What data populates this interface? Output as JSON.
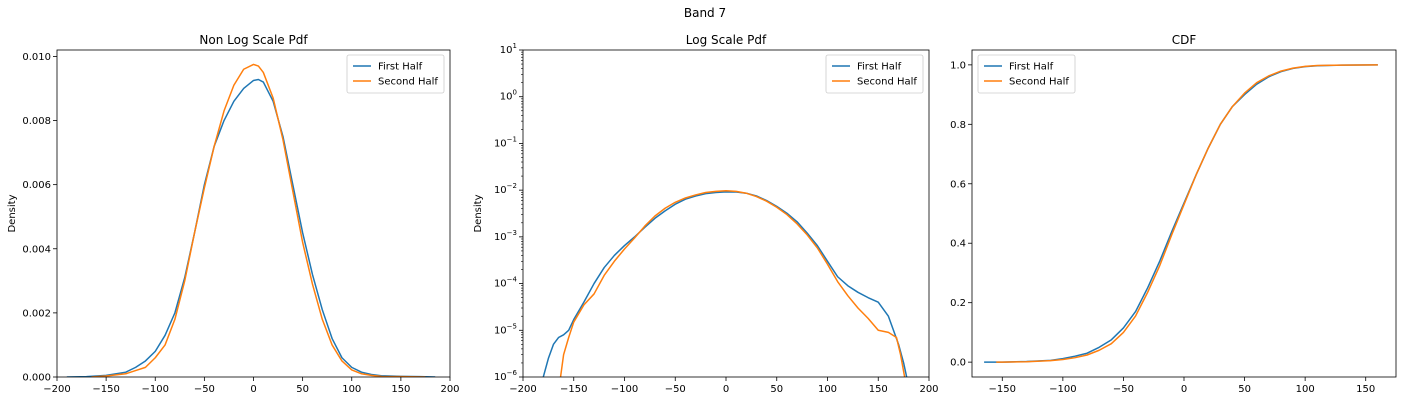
{
  "figure": {
    "suptitle": "Band 7"
  },
  "chart_data": [
    {
      "type": "line",
      "title": "Non Log Scale Pdf",
      "xlabel": "",
      "ylabel": "Density",
      "xlim": [
        -200,
        200
      ],
      "ylim": [
        0,
        0.0102
      ],
      "yscale": "linear",
      "xticks": [
        -200,
        -150,
        -100,
        -50,
        0,
        50,
        100,
        150,
        200
      ],
      "xtick_labels": [
        "−200",
        "−150",
        "−100",
        "−50",
        "0",
        "50",
        "100",
        "150",
        "200"
      ],
      "yticks": [
        0,
        0.002,
        0.004,
        0.006,
        0.008,
        0.01
      ],
      "ytick_labels": [
        "0.000",
        "0.002",
        "0.004",
        "0.006",
        "0.008",
        "0.010"
      ],
      "legend": {
        "position": "upper-right",
        "entries": [
          "First Half",
          "Second Half"
        ]
      },
      "series": [
        {
          "name": "First Half",
          "color": "#1f77b4",
          "x": [
            -190,
            -170,
            -150,
            -130,
            -120,
            -110,
            -100,
            -90,
            -80,
            -70,
            -60,
            -50,
            -40,
            -30,
            -20,
            -10,
            0,
            5,
            10,
            20,
            30,
            40,
            50,
            60,
            70,
            80,
            90,
            100,
            110,
            120,
            130,
            150,
            170,
            185
          ],
          "y": [
            0.0,
            1e-05,
            5e-05,
            0.00015,
            0.0003,
            0.0005,
            0.0008,
            0.0013,
            0.002,
            0.0031,
            0.0045,
            0.006,
            0.0072,
            0.008,
            0.0086,
            0.009,
            0.00925,
            0.00928,
            0.0092,
            0.0086,
            0.0075,
            0.006,
            0.0045,
            0.0032,
            0.0021,
            0.0012,
            0.0006,
            0.0003,
            0.00015,
            8e-05,
            4e-05,
            2e-05,
            1e-05,
            0.0
          ]
        },
        {
          "name": "Second Half",
          "color": "#ff7f0e",
          "x": [
            -165,
            -150,
            -130,
            -120,
            -110,
            -100,
            -90,
            -80,
            -70,
            -60,
            -50,
            -40,
            -30,
            -20,
            -10,
            0,
            5,
            10,
            20,
            30,
            40,
            50,
            60,
            70,
            80,
            90,
            100,
            110,
            120,
            130,
            150,
            175
          ],
          "y": [
            0.0,
            3e-05,
            0.0001,
            0.0002,
            0.0003,
            0.0006,
            0.001,
            0.0018,
            0.003,
            0.0045,
            0.0059,
            0.0072,
            0.0083,
            0.0091,
            0.0096,
            0.00975,
            0.0097,
            0.0095,
            0.0087,
            0.0074,
            0.0058,
            0.0042,
            0.0029,
            0.0018,
            0.001,
            0.0005,
            0.00022,
            0.0001,
            5e-05,
            2e-05,
            1e-05,
            0.0
          ]
        }
      ]
    },
    {
      "type": "line",
      "title": "Log Scale Pdf",
      "xlabel": "",
      "ylabel": "Density",
      "xlim": [
        -200,
        200
      ],
      "ylim": [
        1e-06,
        10
      ],
      "yscale": "log",
      "xticks": [
        -200,
        -150,
        -100,
        -50,
        0,
        50,
        100,
        150,
        200
      ],
      "xtick_labels": [
        "−200",
        "−150",
        "−100",
        "−50",
        "0",
        "50",
        "100",
        "150",
        "200"
      ],
      "yticks": [
        1e-06,
        1e-05,
        0.0001,
        0.001,
        0.01,
        0.1,
        1,
        10
      ],
      "ytick_bases": [
        "10",
        "10",
        "10",
        "10",
        "10",
        "10",
        "10",
        "10"
      ],
      "ytick_exps": [
        "−6",
        "−5",
        "−4",
        "−3",
        "−2",
        "−1",
        "0",
        "1"
      ],
      "legend": {
        "position": "upper-right",
        "entries": [
          "First Half",
          "Second Half"
        ]
      },
      "series": [
        {
          "name": "First Half",
          "color": "#1f77b4",
          "x": [
            -180,
            -175,
            -170,
            -165,
            -160,
            -155,
            -150,
            -140,
            -130,
            -120,
            -110,
            -100,
            -90,
            -80,
            -70,
            -60,
            -50,
            -40,
            -30,
            -20,
            -10,
            0,
            10,
            20,
            30,
            40,
            50,
            60,
            70,
            80,
            90,
            100,
            110,
            120,
            130,
            140,
            150,
            160,
            165,
            170,
            175,
            178
          ],
          "y": [
            1e-06,
            2.5e-06,
            5e-06,
            7e-06,
            8e-06,
            1e-05,
            1.7e-05,
            4e-05,
            0.0001,
            0.00022,
            0.0004,
            0.00065,
            0.001,
            0.0016,
            0.0025,
            0.0036,
            0.005,
            0.0064,
            0.0075,
            0.0084,
            0.0089,
            0.0092,
            0.0091,
            0.0086,
            0.0075,
            0.006,
            0.0045,
            0.0032,
            0.0021,
            0.0012,
            0.00065,
            0.0003,
            0.00014,
            9e-05,
            6.5e-05,
            5e-05,
            4e-05,
            2e-05,
            1e-05,
            5e-06,
            2e-06,
            1e-06
          ]
        },
        {
          "name": "Second Half",
          "color": "#ff7f0e",
          "x": [
            -163,
            -160,
            -155,
            -150,
            -140,
            -130,
            -120,
            -110,
            -100,
            -90,
            -80,
            -70,
            -60,
            -50,
            -40,
            -30,
            -20,
            -10,
            0,
            10,
            20,
            30,
            40,
            50,
            60,
            70,
            80,
            90,
            100,
            110,
            120,
            130,
            140,
            150,
            160,
            168,
            172,
            176
          ],
          "y": [
            1e-06,
            3e-06,
            7e-06,
            1.5e-05,
            3.5e-05,
            6e-05,
            0.00015,
            0.0003,
            0.00055,
            0.00095,
            0.0017,
            0.0028,
            0.0041,
            0.0055,
            0.0068,
            0.0079,
            0.0089,
            0.0094,
            0.0097,
            0.0094,
            0.0086,
            0.0073,
            0.0058,
            0.0043,
            0.003,
            0.0019,
            0.0011,
            0.00058,
            0.00026,
            0.00011,
            5.5e-05,
            3e-05,
            1.8e-05,
            1e-05,
            9e-06,
            7e-06,
            3e-06,
            1e-06
          ]
        }
      ]
    },
    {
      "type": "line",
      "title": "CDF",
      "xlabel": "",
      "ylabel": "",
      "xlim": [
        -175,
        175
      ],
      "ylim": [
        -0.05,
        1.05
      ],
      "yscale": "linear",
      "xticks": [
        -150,
        -100,
        -50,
        0,
        50,
        100,
        150
      ],
      "xtick_labels": [
        "−150",
        "−100",
        "−50",
        "0",
        "50",
        "100",
        "150"
      ],
      "yticks": [
        0,
        0.2,
        0.4,
        0.6,
        0.8,
        1.0
      ],
      "ytick_labels": [
        "0.0",
        "0.2",
        "0.4",
        "0.6",
        "0.8",
        "1.0"
      ],
      "legend": {
        "position": "upper-left",
        "entries": [
          "First Half",
          "Second Half"
        ]
      },
      "series": [
        {
          "name": "First Half",
          "color": "#1f77b4",
          "x": [
            -165,
            -150,
            -130,
            -110,
            -100,
            -90,
            -80,
            -70,
            -60,
            -50,
            -40,
            -30,
            -20,
            -10,
            0,
            10,
            20,
            30,
            40,
            50,
            60,
            70,
            80,
            90,
            100,
            110,
            130,
            160
          ],
          "y": [
            0.0,
            0.0,
            0.002,
            0.006,
            0.012,
            0.02,
            0.03,
            0.05,
            0.075,
            0.115,
            0.17,
            0.25,
            0.34,
            0.44,
            0.535,
            0.63,
            0.72,
            0.8,
            0.86,
            0.9,
            0.935,
            0.96,
            0.977,
            0.988,
            0.994,
            0.997,
            0.999,
            1.0
          ]
        },
        {
          "name": "Second Half",
          "color": "#ff7f0e",
          "x": [
            -155,
            -150,
            -130,
            -110,
            -100,
            -90,
            -80,
            -70,
            -60,
            -50,
            -40,
            -30,
            -20,
            -10,
            0,
            10,
            20,
            30,
            40,
            50,
            60,
            70,
            80,
            90,
            100,
            110,
            130,
            160
          ],
          "y": [
            0.0,
            0.0,
            0.0015,
            0.005,
            0.009,
            0.015,
            0.024,
            0.04,
            0.062,
            0.1,
            0.155,
            0.235,
            0.325,
            0.43,
            0.53,
            0.63,
            0.72,
            0.8,
            0.86,
            0.905,
            0.94,
            0.963,
            0.979,
            0.989,
            0.995,
            0.998,
            0.999,
            1.0
          ]
        }
      ]
    }
  ]
}
